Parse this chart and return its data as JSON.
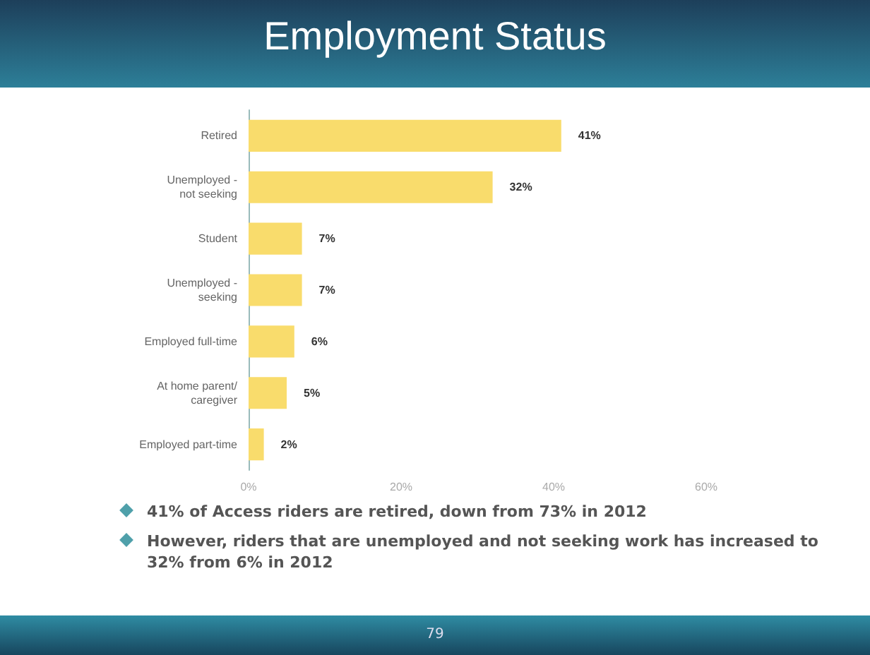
{
  "chart_data": {
    "type": "bar",
    "title": "Employment Status",
    "orientation": "horizontal",
    "categories": [
      "Retired",
      "Unemployed -\nnot seeking",
      "Student",
      "Unemployed -\nseeking",
      "Employed full-time",
      "At home parent/\ncaregiver",
      "Employed part-time"
    ],
    "values": [
      41,
      32,
      7,
      7,
      6,
      5,
      2
    ],
    "color": "#f9dc6c",
    "value_labels": [
      "41%",
      "32%",
      "7%",
      "7%",
      "6%",
      "5%",
      "2%"
    ],
    "xlim": [
      0,
      60
    ],
    "xticks": [
      {
        "value": 0,
        "label": "0%"
      },
      {
        "value": 20,
        "label": "20%"
      },
      {
        "value": 40,
        "label": "40%"
      },
      {
        "value": 60,
        "label": "60%"
      }
    ],
    "grid": false,
    "annotations": [
      "41% of Access riders are retired, down from 73% in 2012",
      "However, riders that are unemployed and not seeking work has increased to 32% from 6% in 2012",
      "79"
    ]
  }
}
